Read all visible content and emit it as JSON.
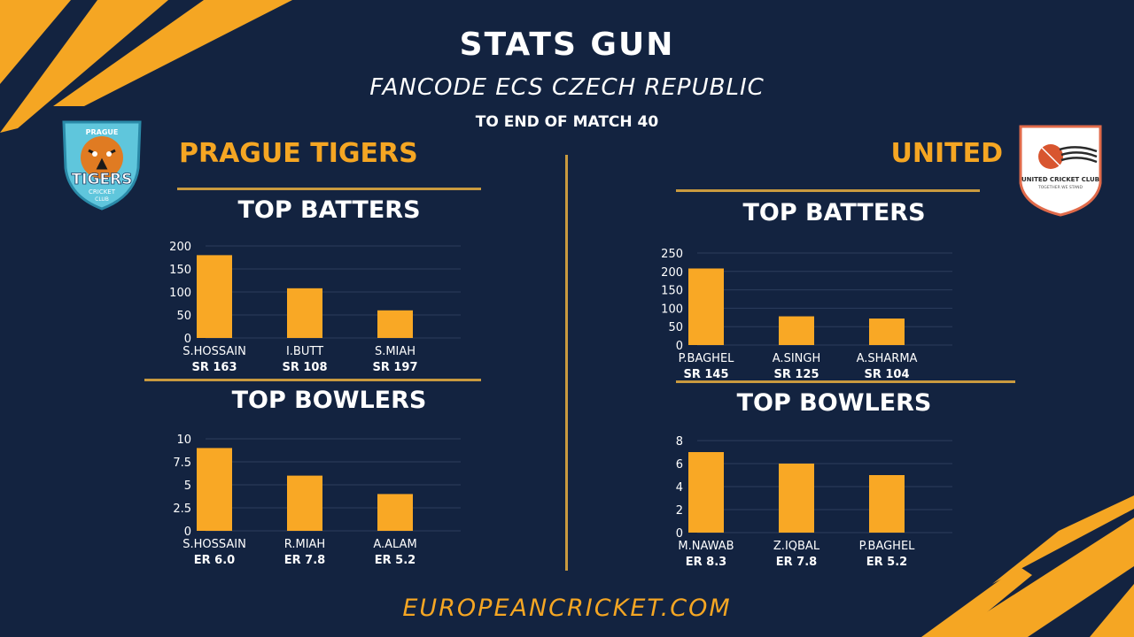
{
  "header": {
    "title": "STATS GUN",
    "subtitle": "FANCODE ECS CZECH REPUBLIC",
    "note": "TO END OF MATCH 40"
  },
  "footer": {
    "text": "EUROPEANCRICKET.COM"
  },
  "colors": {
    "background": "#132340",
    "accent": "#f5a623",
    "rule": "#c99a3f",
    "bar": "#f9a825"
  },
  "teams": {
    "left": {
      "name": "PRAGUE TIGERS",
      "logo": {
        "icon": "tiger-logo",
        "top_text": "PRAGUE",
        "main_text": "TIGERS",
        "sub_text": "CRICKET",
        "club_text": "CLUB"
      }
    },
    "right": {
      "name": "UNITED",
      "logo": {
        "icon": "cricket-ball-logo",
        "main_text": "UNITED CRICKET CLUB",
        "sub_text": "TOGETHER WE STAND"
      }
    }
  },
  "sections": {
    "batters_title": "TOP BATTERS",
    "bowlers_title": "TOP BOWLERS"
  },
  "chart_data": [
    {
      "id": "left-batters",
      "type": "bar",
      "categories": [
        "S.HOSSAIN",
        "I.BUTT",
        "S.MIAH"
      ],
      "values": [
        180,
        108,
        60
      ],
      "stats": [
        "SR 163",
        "SR 108",
        "SR 197"
      ],
      "yticks": [
        0,
        50,
        100,
        150,
        200
      ],
      "ylim": [
        0,
        200
      ],
      "grid": true
    },
    {
      "id": "left-bowlers",
      "type": "bar",
      "categories": [
        "S.HOSSAIN",
        "R.MIAH",
        "A.ALAM"
      ],
      "values": [
        9,
        6,
        4
      ],
      "stats": [
        "ER 6.0",
        "ER 7.8",
        "ER 5.2"
      ],
      "yticks": [
        0,
        2.5,
        5,
        7.5,
        10
      ],
      "ylim": [
        0,
        10
      ],
      "grid": true
    },
    {
      "id": "right-batters",
      "type": "bar",
      "categories": [
        "P.BAGHEL",
        "A.SINGH",
        "A.SHARMA"
      ],
      "values": [
        208,
        78,
        72
      ],
      "stats": [
        "SR 145",
        "SR 125",
        "SR 104"
      ],
      "yticks": [
        0,
        50,
        100,
        150,
        200,
        250
      ],
      "ylim": [
        0,
        250
      ],
      "grid": true
    },
    {
      "id": "right-bowlers",
      "type": "bar",
      "categories": [
        "M.NAWAB",
        "Z.IQBAL",
        "P.BAGHEL"
      ],
      "values": [
        7,
        6,
        5
      ],
      "stats": [
        "ER 8.3",
        "ER 7.8",
        "ER 5.2"
      ],
      "yticks": [
        0,
        2,
        4,
        6,
        8
      ],
      "ylim": [
        0,
        8
      ],
      "grid": true
    }
  ]
}
